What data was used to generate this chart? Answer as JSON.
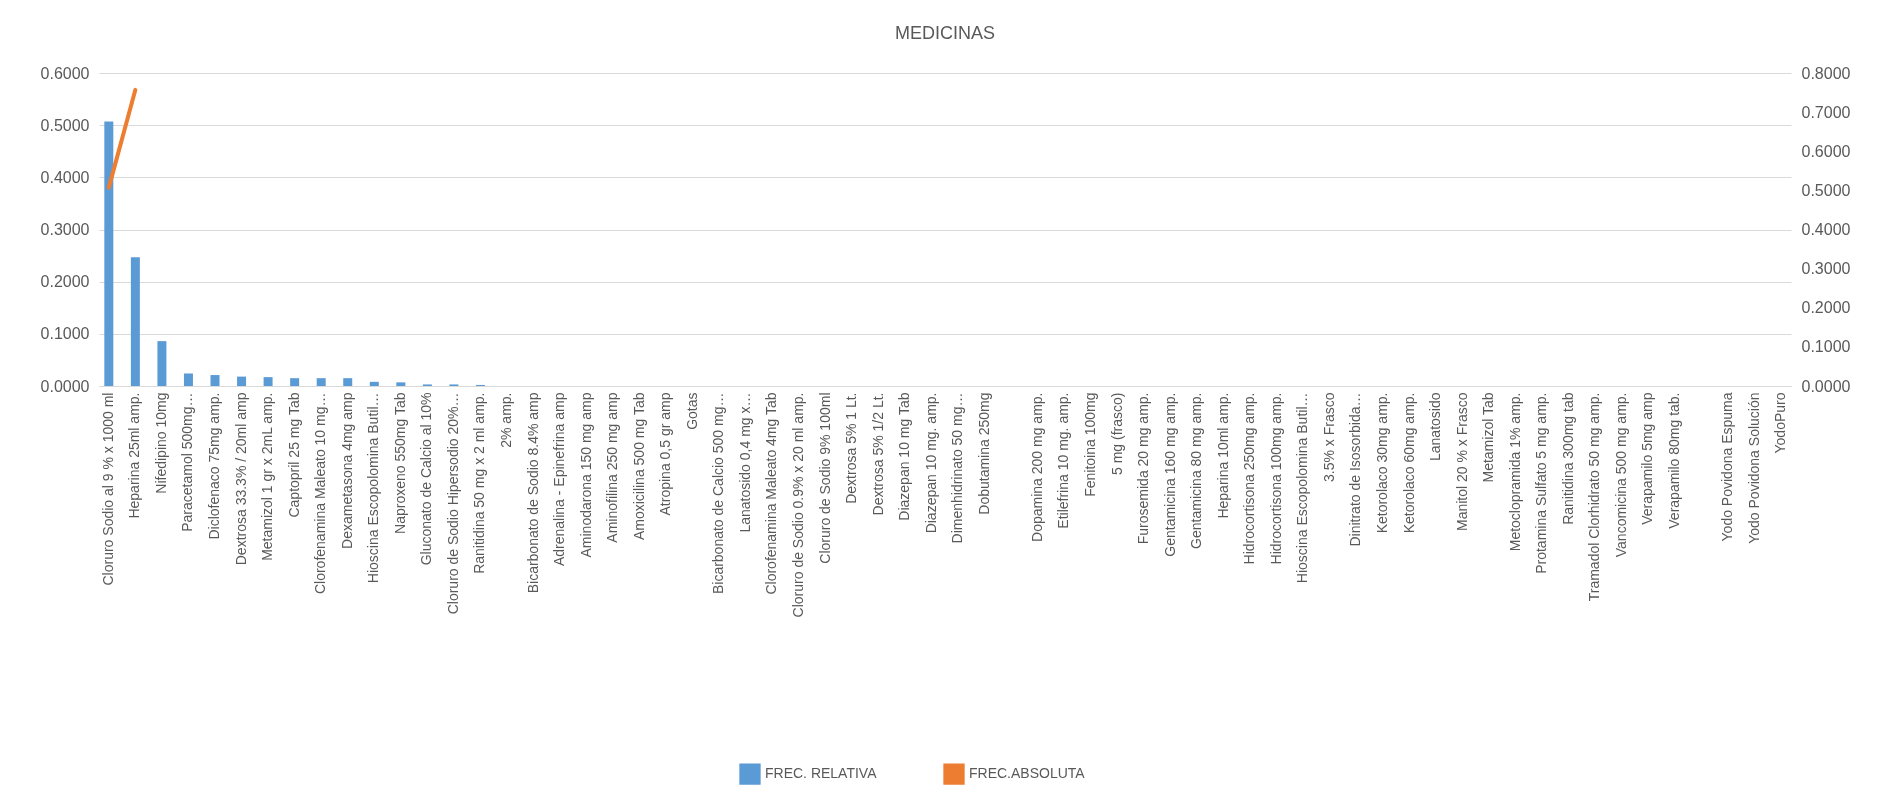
{
  "chart_data": {
    "type": "bar",
    "title": "MEDICINAS",
    "categories": [
      "Cloruro  Sodio al 9 % x 1000 ml",
      "Heparina  25ml    amp.",
      "Nifedipino 10mg",
      "Paracetamol  500mg…",
      "Diclofenaco 75mg amp.",
      "Dextrosa 33.3% / 20ml    amp",
      "Metamizol 1 gr x 2mL  amp.",
      "Captopril  25 mg   Tab",
      "Clorofenamina Maleato   10 mg…",
      "Dexametasona  4mg     amp",
      "Hioscina Escopolomina  Butil…",
      "Naproxeno  550mg  Tab",
      "Gluconato de Calcio al 10%",
      "Cloruro de Sodio Hipersodio  20%…",
      "Ranitidina  50 mg x 2 ml  amp.",
      "2%   amp.",
      "Bicarbonato de Sodio 8.4%     amp",
      "Adrenalina - Epinefrina    amp",
      "Aminodarona   150 mg     amp",
      "Aminofilina 250 mg     amp",
      "Amoxicilina  500 mg    Tab",
      "Atropina 0,5 gr   amp",
      "Gotas",
      "Bicarbonato de Calcio  500 mg…",
      "Lanatosido 0,4 mg x…",
      "Clorofenamina Maleato   4mg  Tab",
      "Cloruro de Sodio 0.9% x 20 ml  amp.",
      "Cloruro de Sodio  9%  100ml",
      "Dextrosa 5%    1 Lt.",
      "Dextrosa 5%    1/2 Lt.",
      "Diazepan   10 mg   Tab",
      "Diazepan   10 mg.  amp.",
      "Dimenhidrinato  50 mg…",
      "Dobutamina  250mg",
      null,
      "Dopamina   200 mg  amp.",
      "Etilefrina 10 mg.  amp.",
      "Fenitoina  100mg",
      "5 mg   (frasco)",
      "Furosemida   20 mg     amp.",
      "Gentamicina  160 mg amp.",
      "Gentamicina  80 mg amp.",
      "Heparina 10ml    amp.",
      "Hidrocortisona  250mg   amp.",
      "Hidrocortisona 100mg  amp.",
      "Hioscina Escopolomina  Butil…",
      "3.5% x Frasco",
      "Dinitrato de Isosorbida…",
      "Ketorolaco  30mg   amp.",
      "Ketorolaco  60mg   amp.",
      "Lanatosido",
      "Manitol 20 % x Frasco",
      "Metamizol   Tab",
      "Metoclopramida  1%     amp.",
      "Protamina  Sulfato  5 mg  amp.",
      "Ranitidina   300mg   tab",
      "Tramadol  Clorhidrato 50 mg    amp.",
      "Vancomicina   500 mg   amp.",
      "Verapamilo   5mg  amp",
      "Verapamilo   80mg tab.",
      null,
      "Yodo Povidona Espuma",
      "Yodo Povidona Solución",
      "YodoPuro"
    ],
    "series": [
      {
        "name": "FREC. RELATIVA",
        "color": "#5b9bd5",
        "values": [
          0.507,
          0.247,
          0.086,
          0.024,
          0.021,
          0.018,
          0.017,
          0.015,
          0.015,
          0.015,
          0.008,
          0.007,
          0.003,
          0.003,
          0.002,
          0,
          0,
          0,
          0,
          0,
          0,
          0,
          0,
          0,
          0,
          0,
          0,
          0,
          0,
          0,
          0,
          0,
          0,
          0,
          0,
          0,
          0,
          0,
          0,
          0,
          0,
          0,
          0,
          0,
          0,
          0,
          0,
          0,
          0,
          0,
          0,
          0,
          0,
          0,
          0,
          0,
          0,
          0,
          0,
          0,
          0,
          0,
          0,
          0
        ]
      },
      {
        "name": "FREC.ABSOLUTA",
        "type": "line",
        "axis": "y2",
        "color": "#ed7d31",
        "values": [
          0.507,
          0.757,
          null,
          null,
          null,
          null,
          null,
          null,
          null,
          null,
          null,
          null,
          null,
          null,
          null,
          null,
          null,
          null,
          null,
          null,
          null,
          null,
          null,
          null,
          null,
          null,
          null,
          null,
          null,
          null,
          null,
          null,
          null,
          null,
          null,
          null,
          null,
          null,
          null,
          null,
          null,
          null,
          null,
          null,
          null,
          null,
          null,
          null,
          null,
          null,
          null,
          null,
          null,
          null,
          null,
          null,
          null,
          null,
          null,
          null,
          null,
          null,
          null,
          null
        ]
      }
    ],
    "ylim": [
      0,
      0.6
    ],
    "yticks": [
      {
        "value": 0,
        "label": "0.0000"
      },
      {
        "value": 0.1,
        "label": "0.1000"
      },
      {
        "value": 0.2,
        "label": "0.2000"
      },
      {
        "value": 0.3,
        "label": "0.3000"
      },
      {
        "value": 0.4,
        "label": "0.4000"
      },
      {
        "value": 0.5,
        "label": "0.5000"
      },
      {
        "value": 0.6,
        "label": "0.6000"
      }
    ],
    "y2lim": [
      0,
      0.8
    ],
    "y2ticks": [
      {
        "value": 0,
        "label": "0.0000"
      },
      {
        "value": 0.1,
        "label": "0.1000"
      },
      {
        "value": 0.2,
        "label": "0.2000"
      },
      {
        "value": 0.3,
        "label": "0.3000"
      },
      {
        "value": 0.4,
        "label": "0.4000"
      },
      {
        "value": 0.5,
        "label": "0.5000"
      },
      {
        "value": 0.6,
        "label": "0.6000"
      },
      {
        "value": 0.7,
        "label": "0.7000"
      },
      {
        "value": 0.8,
        "label": "0.8000"
      }
    ],
    "grid": "y",
    "legend": "bottom"
  }
}
